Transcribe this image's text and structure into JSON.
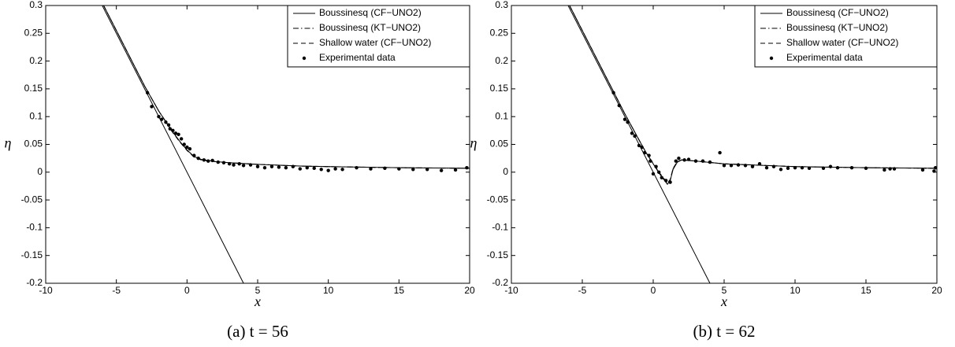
{
  "chart_data": [
    {
      "type": "line",
      "caption": "(a) t = 56",
      "xlabel": "x",
      "ylabel": "η",
      "xlim": [
        -10,
        20
      ],
      "ylim": [
        -0.2,
        0.3
      ],
      "xticks": [
        -10,
        -5,
        0,
        5,
        10,
        15,
        20
      ],
      "yticks": [
        -0.2,
        -0.15,
        -0.1,
        -0.05,
        0,
        0.05,
        0.1,
        0.15,
        0.2,
        0.25,
        0.3
      ],
      "grid": false,
      "legend": "upper right",
      "series": [
        {
          "name": "Boussinesq (CF−UNO2)",
          "color": "#000000",
          "linestyle": "solid",
          "x": [
            -5.9,
            -5,
            -4,
            -3,
            -2,
            -1,
            -0.5,
            0,
            0.5,
            1,
            1.5,
            2,
            3,
            5,
            8,
            10,
            15,
            20
          ],
          "values": [
            0.3,
            0.255,
            0.205,
            0.155,
            0.11,
            0.072,
            0.055,
            0.04,
            0.028,
            0.023,
            0.021,
            0.019,
            0.017,
            0.014,
            0.011,
            0.01,
            0.008,
            0.007
          ]
        },
        {
          "name": "Boussinesq (KT−UNO2)",
          "color": "#000000",
          "linestyle": "dashdot",
          "x": [
            -5.9,
            -5,
            -4,
            -3,
            -2,
            -1,
            -0.5,
            0,
            0.5,
            1,
            1.5,
            2,
            3,
            5,
            8,
            10,
            15,
            20
          ],
          "values": [
            0.3,
            0.255,
            0.205,
            0.155,
            0.11,
            0.072,
            0.055,
            0.04,
            0.028,
            0.023,
            0.021,
            0.019,
            0.017,
            0.014,
            0.011,
            0.01,
            0.008,
            0.007
          ]
        },
        {
          "name": "Shallow water (CF−UNO2)",
          "color": "#000000",
          "linestyle": "dashed",
          "x": [
            -5.9,
            -5,
            -4,
            -3,
            -2,
            -1,
            -0.5,
            0,
            0.5,
            1,
            1.5,
            2,
            3,
            5,
            8,
            10,
            15,
            20
          ],
          "values": [
            0.3,
            0.255,
            0.205,
            0.155,
            0.11,
            0.071,
            0.054,
            0.039,
            0.027,
            0.022,
            0.02,
            0.019,
            0.017,
            0.014,
            0.011,
            0.01,
            0.008,
            0.007
          ]
        },
        {
          "name": "Experimental data",
          "color": "#000000",
          "linestyle": "none",
          "marker": "dot",
          "x": [
            -2.8,
            -2.5,
            -2,
            -1.8,
            -1.5,
            -1.3,
            -1.2,
            -1,
            -0.8,
            -0.6,
            -0.4,
            -0.2,
            0,
            0.2,
            0.5,
            0.8,
            1.2,
            1.5,
            1.8,
            2.2,
            2.6,
            3,
            3.3,
            3.7,
            4,
            4.5,
            5,
            5.5,
            6,
            6.5,
            7,
            7.5,
            8,
            8.5,
            9,
            9.5,
            10,
            10.5,
            11,
            12,
            13,
            14,
            15,
            16,
            17,
            18,
            19,
            19.8
          ],
          "values": [
            0.143,
            0.118,
            0.1,
            0.095,
            0.09,
            0.085,
            0.078,
            0.075,
            0.07,
            0.068,
            0.06,
            0.05,
            0.045,
            0.042,
            0.03,
            0.025,
            0.022,
            0.02,
            0.021,
            0.018,
            0.017,
            0.015,
            0.013,
            0.015,
            0.012,
            0.013,
            0.01,
            0.008,
            0.01,
            0.009,
            0.008,
            0.01,
            0.006,
            0.008,
            0.007,
            0.005,
            0.003,
            0.006,
            0.005,
            0.008,
            0.006,
            0.007,
            0.006,
            0.005,
            0.005,
            0.003,
            0.004,
            0.008
          ]
        },
        {
          "color": "#000000",
          "linestyle": "solid",
          "x": [
            -6,
            4
          ],
          "values": [
            0.3,
            -0.2
          ]
        }
      ]
    },
    {
      "type": "line",
      "caption": "(b) t = 62",
      "xlabel": "x",
      "ylabel": "η",
      "xlim": [
        -10,
        20
      ],
      "ylim": [
        -0.2,
        0.3
      ],
      "xticks": [
        -10,
        -5,
        0,
        5,
        10,
        15,
        20
      ],
      "yticks": [
        -0.2,
        -0.15,
        -0.1,
        -0.05,
        0,
        0.05,
        0.1,
        0.15,
        0.2,
        0.25,
        0.3
      ],
      "grid": false,
      "legend": "upper right",
      "series": [
        {
          "name": "Boussinesq (CF−UNO2)",
          "color": "#000000",
          "linestyle": "solid",
          "x": [
            -5.9,
            -5,
            -4,
            -3,
            -2,
            -1,
            -0.5,
            0,
            0.5,
            0.8,
            1,
            1.2,
            1.4,
            1.7,
            2,
            3,
            5,
            8,
            10,
            15,
            20
          ],
          "values": [
            0.3,
            0.255,
            0.205,
            0.155,
            0.105,
            0.058,
            0.035,
            0.015,
            -0.005,
            -0.015,
            -0.022,
            -0.015,
            0.005,
            0.018,
            0.022,
            0.02,
            0.015,
            0.012,
            0.01,
            0.008,
            0.007
          ]
        },
        {
          "name": "Boussinesq (KT−UNO2)",
          "color": "#000000",
          "linestyle": "dashdot",
          "x": [
            -5.9,
            -5,
            -4,
            -3,
            -2,
            -1,
            -0.5,
            0,
            0.5,
            0.8,
            1,
            1.2,
            1.4,
            1.7,
            2,
            3,
            5,
            8,
            10,
            15,
            20
          ],
          "values": [
            0.3,
            0.255,
            0.205,
            0.155,
            0.105,
            0.058,
            0.035,
            0.015,
            -0.004,
            -0.014,
            -0.021,
            -0.014,
            0.006,
            0.018,
            0.022,
            0.02,
            0.015,
            0.012,
            0.01,
            0.008,
            0.007
          ]
        },
        {
          "name": "Shallow water (CF−UNO2)",
          "color": "#000000",
          "linestyle": "dashed",
          "x": [
            -5.9,
            -5,
            -4,
            -3,
            -2,
            -1,
            -0.5,
            0,
            0.5,
            0.8,
            1,
            1.2,
            1.4,
            1.7,
            2,
            3,
            5,
            8,
            10,
            15,
            20
          ],
          "values": [
            0.3,
            0.255,
            0.205,
            0.155,
            0.105,
            0.058,
            0.035,
            0.016,
            -0.003,
            -0.013,
            -0.02,
            -0.013,
            0.007,
            0.019,
            0.022,
            0.02,
            0.015,
            0.012,
            0.01,
            0.008,
            0.007
          ]
        },
        {
          "name": "Experimental data",
          "color": "#000000",
          "linestyle": "none",
          "marker": "dot",
          "x": [
            -2.8,
            -2.4,
            -2,
            -1.8,
            -1.5,
            -1.3,
            -1,
            -0.8,
            -0.6,
            -0.3,
            -0.2,
            0,
            0.2,
            0.4,
            0.6,
            0.9,
            1.2,
            1.6,
            1.8,
            2.2,
            2.5,
            3,
            3.5,
            4,
            4.7,
            5,
            5.5,
            6,
            6.5,
            7,
            7.5,
            8,
            8.5,
            9,
            9.5,
            10,
            10.5,
            11,
            12,
            12.5,
            13,
            14,
            15,
            16.3,
            16.7,
            17,
            19,
            19.8,
            19.9
          ],
          "values": [
            0.143,
            0.12,
            0.095,
            0.09,
            0.07,
            0.065,
            0.048,
            0.045,
            0.035,
            0.03,
            0.02,
            -0.003,
            0.01,
            0,
            -0.01,
            -0.015,
            -0.018,
            0.02,
            0.025,
            0.022,
            0.023,
            0.02,
            0.02,
            0.018,
            0.035,
            0.012,
            0.012,
            0.013,
            0.012,
            0.01,
            0.015,
            0.008,
            0.01,
            0.005,
            0.007,
            0.008,
            0.008,
            0.007,
            0.007,
            0.01,
            0.008,
            0.008,
            0.007,
            0.004,
            0.006,
            0.006,
            0.004,
            0.002,
            0.008
          ]
        },
        {
          "color": "#000000",
          "linestyle": "solid",
          "x": [
            -6,
            4
          ],
          "values": [
            0.3,
            -0.2
          ]
        }
      ]
    }
  ]
}
